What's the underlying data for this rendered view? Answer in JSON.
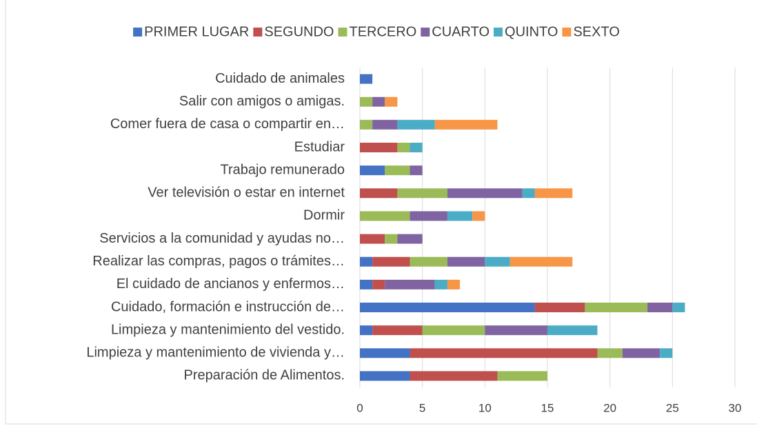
{
  "chart_data": {
    "type": "stacked_barh",
    "categories": [
      "Cuidado de animales",
      "Salir con amigos o amigas.",
      "Comer fuera de casa o compartir en…",
      "Estudiar",
      "Trabajo remunerado",
      "Ver televisión o estar en internet",
      "Dormir",
      "Servicios a la comunidad y ayudas no…",
      "Realizar las compras, pagos o trámites…",
      "El cuidado de ancianos y enfermos…",
      "Cuidado, formación e instrucción de…",
      "Limpieza y mantenimiento del vestido.",
      "Limpieza y mantenimiento de vivienda y…",
      "Preparación de Alimentos."
    ],
    "series": [
      {
        "name": "PRIMER LUGAR",
        "color": "#4472c4",
        "values": [
          1,
          0,
          0,
          0,
          2,
          0,
          0,
          0,
          1,
          1,
          14,
          1,
          4,
          4
        ]
      },
      {
        "name": "SEGUNDO",
        "color": "#c0504d",
        "values": [
          0,
          0,
          0,
          3,
          0,
          3,
          0,
          2,
          3,
          1,
          4,
          4,
          15,
          7
        ]
      },
      {
        "name": "TERCERO",
        "color": "#9bbb59",
        "values": [
          0,
          1,
          1,
          1,
          2,
          4,
          4,
          1,
          3,
          0,
          5,
          5,
          2,
          4
        ]
      },
      {
        "name": "CUARTO",
        "color": "#8064a2",
        "values": [
          0,
          1,
          2,
          0,
          1,
          6,
          3,
          2,
          3,
          4,
          2,
          5,
          3,
          0
        ]
      },
      {
        "name": "QUINTO",
        "color": "#4bacc6",
        "values": [
          0,
          0,
          3,
          1,
          0,
          1,
          2,
          0,
          2,
          1,
          1,
          4,
          1,
          0
        ]
      },
      {
        "name": "SEXTO",
        "color": "#f79646",
        "values": [
          0,
          1,
          5,
          0,
          0,
          3,
          1,
          0,
          5,
          1,
          0,
          0,
          0,
          0
        ]
      }
    ],
    "xlim": [
      0,
      30
    ],
    "xticks": [
      0,
      5,
      10,
      15,
      20,
      25,
      30
    ],
    "grid": true,
    "legend": "top"
  }
}
